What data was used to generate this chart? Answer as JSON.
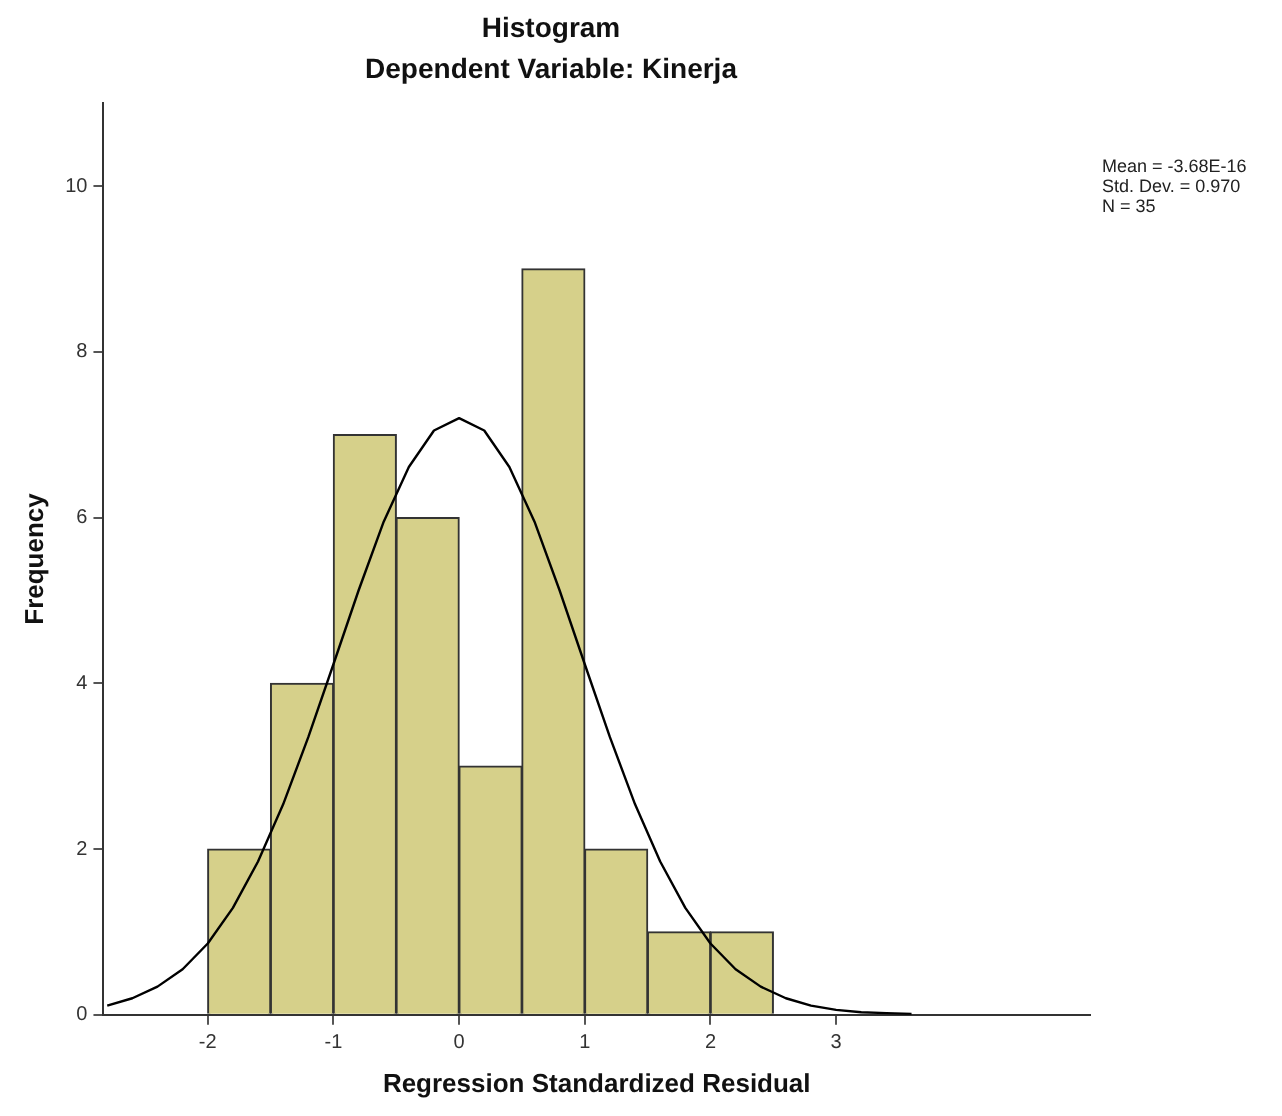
{
  "chart_data": {
    "type": "histogram",
    "title": "Histogram",
    "subtitle": "Dependent Variable: Kinerja",
    "xlabel": "Regression Standardized Residual",
    "ylabel": "Frequency",
    "xlim": [
      -2.83,
      5.02
    ],
    "xticks": [
      -2,
      -1,
      0,
      1,
      2,
      3
    ],
    "ylim": [
      0,
      11
    ],
    "yticks": [
      0,
      2,
      4,
      6,
      8,
      10
    ],
    "series": [
      {
        "color": "#d6d08a",
        "bins": [
          -2,
          -1.5,
          -1,
          -0.5,
          0,
          0.5,
          1,
          1.5,
          2,
          2.5
        ],
        "values": [
          2,
          4,
          7,
          6,
          3,
          9,
          2,
          1,
          1
        ]
      },
      {
        "type": "line",
        "color": "#000000",
        "marker": "none",
        "x": [
          -2.8,
          -2.6,
          -2.4,
          -2.2,
          -2.0,
          -1.8,
          -1.6,
          -1.4,
          -1.2,
          -1.0,
          -0.8,
          -0.6,
          -0.4,
          -0.2,
          0,
          0.2,
          0.4,
          0.6,
          0.8,
          1.0,
          1.2,
          1.4,
          1.6,
          1.8,
          2.0,
          2.2,
          2.4,
          2.6,
          2.8,
          3.0,
          3.2,
          3.4,
          3.6
        ],
        "values": [
          0.11,
          0.2,
          0.34,
          0.55,
          0.86,
          1.29,
          1.85,
          2.54,
          3.35,
          4.23,
          5.12,
          5.95,
          6.61,
          7.05,
          7.2,
          7.05,
          6.61,
          5.95,
          5.12,
          4.23,
          3.35,
          2.54,
          1.85,
          1.29,
          0.86,
          0.55,
          0.34,
          0.2,
          0.11,
          0.06,
          0.03,
          0.02,
          0.01
        ]
      }
    ],
    "annotations": [
      "Mean = -3.68E-16",
      "Std. Dev. = 0.970",
      "N = 35"
    ]
  }
}
